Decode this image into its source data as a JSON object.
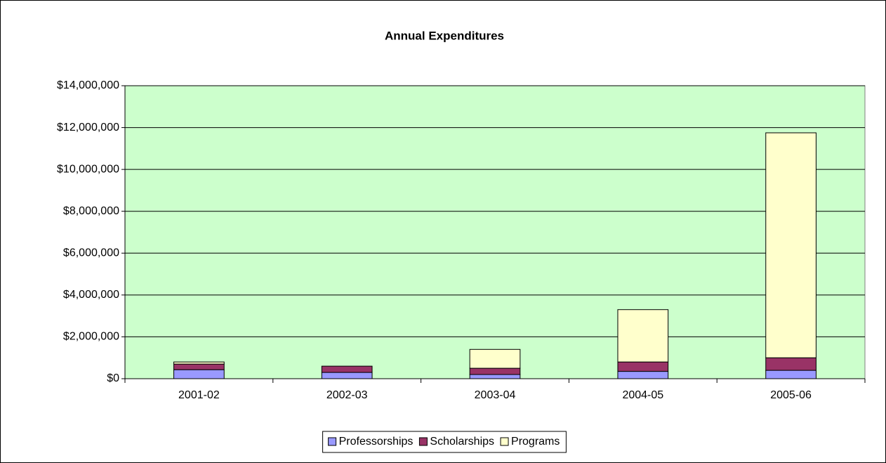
{
  "chart_data": {
    "type": "bar",
    "stacked": true,
    "title": "Annual Expenditures",
    "categories": [
      "2001-02",
      "2002-03",
      "2003-04",
      "2004-05",
      "2005-06"
    ],
    "series": [
      {
        "name": "Professorships",
        "color": "#9999ff",
        "values": [
          430000,
          300000,
          200000,
          350000,
          400000
        ]
      },
      {
        "name": "Scholarships",
        "color": "#993366",
        "values": [
          270000,
          300000,
          300000,
          450000,
          600000
        ]
      },
      {
        "name": "Programs",
        "color": "#ffffcc",
        "values": [
          100000,
          0,
          900000,
          2500000,
          10750000
        ]
      }
    ],
    "ylim": [
      0,
      14000000
    ],
    "yticks": [
      {
        "value": 0,
        "label": "$0"
      },
      {
        "value": 2000000,
        "label": "$2,000,000"
      },
      {
        "value": 4000000,
        "label": "$4,000,000"
      },
      {
        "value": 6000000,
        "label": "$6,000,000"
      },
      {
        "value": 8000000,
        "label": "$8,000,000"
      },
      {
        "value": 10000000,
        "label": "$10,000,000"
      },
      {
        "value": 12000000,
        "label": "$12,000,000"
      },
      {
        "value": 14000000,
        "label": "$14,000,000"
      }
    ],
    "grid": true,
    "plot_background": "#ccffcc",
    "legend": "bottom"
  }
}
